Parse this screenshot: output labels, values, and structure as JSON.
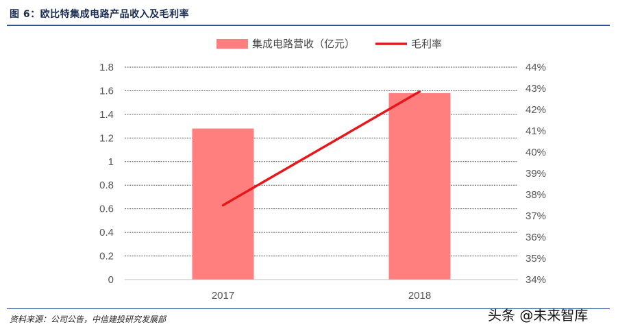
{
  "figure": {
    "title": "图 6：欧比特集成电路产品收入及毛利率",
    "source": "资料来源：公司公告，中信建投研究发展部",
    "watermark": "头条 @未来智库"
  },
  "chart_data": {
    "type": "bar",
    "categories": [
      "2017",
      "2018"
    ],
    "series": [
      {
        "name": "集成电路营收（亿元）",
        "type": "bar",
        "axis": "left",
        "color": "#ff7f7f",
        "values": [
          1.28,
          1.58
        ]
      },
      {
        "name": "毛利率",
        "type": "line",
        "axis": "right",
        "color": "#e8161b",
        "values": [
          37.5,
          42.85
        ]
      }
    ],
    "y_left": {
      "min": 0,
      "max": 1.8,
      "ticks": [
        "0",
        "0.2",
        "0.4",
        "0.6",
        "0.8",
        "1",
        "1.2",
        "1.4",
        "1.6",
        "1.8"
      ]
    },
    "y_right": {
      "min": 34,
      "max": 44,
      "ticks": [
        "34%",
        "35%",
        "36%",
        "37%",
        "38%",
        "39%",
        "40%",
        "41%",
        "42%",
        "43%",
        "44%"
      ]
    },
    "grid": "horizontal dashed",
    "legend_position": "top-center"
  }
}
